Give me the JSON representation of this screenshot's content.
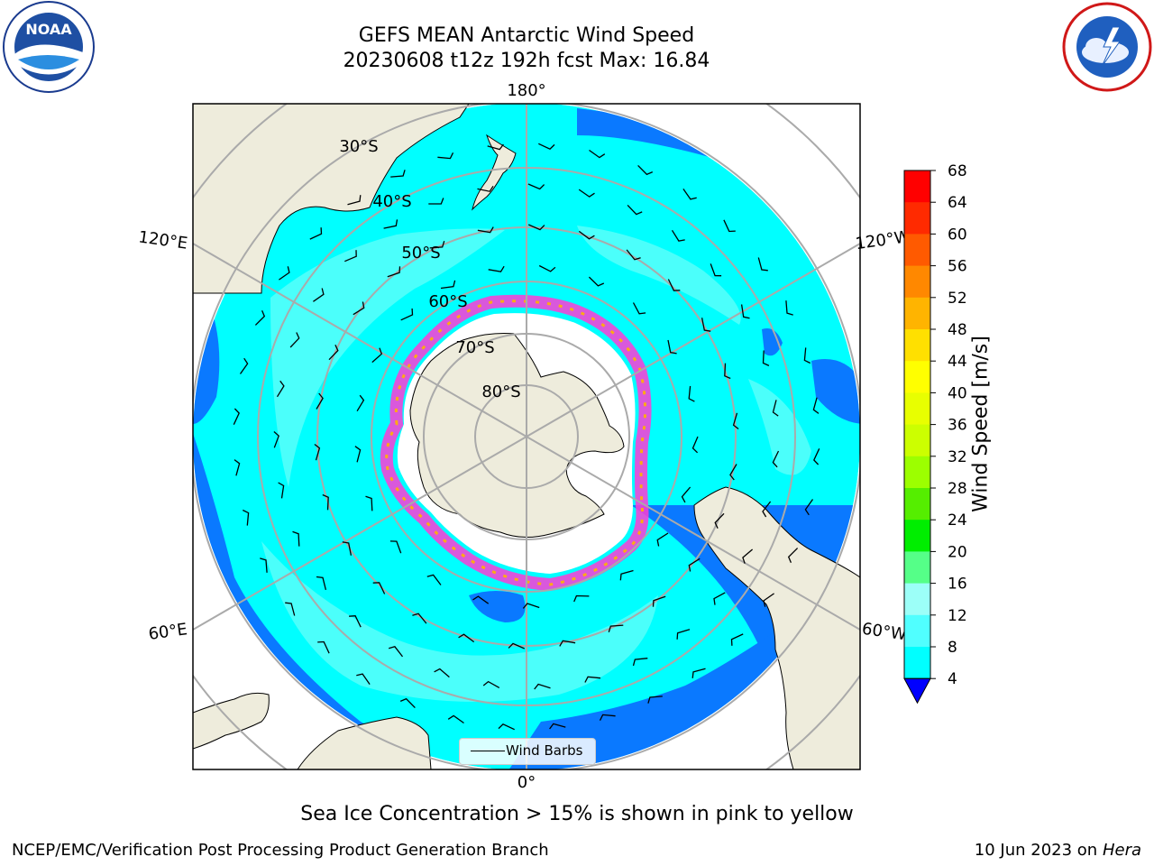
{
  "title": {
    "line1": "GEFS MEAN Antarctic Wind Speed",
    "line2": "20230608 t12z 192h fcst   Max: 16.84"
  },
  "map": {
    "projection": "south-polar-stereographic",
    "meridian_labels": [
      "180°",
      "120°E",
      "120°W",
      "60°E",
      "60°W",
      "0°"
    ],
    "parallel_labels": [
      "30°S",
      "40°S",
      "50°S",
      "60°S",
      "70°S",
      "80°S"
    ],
    "legend_label": "Wind Barbs",
    "colors": {
      "land": "#eeecdc",
      "ice_pink": "#ff3bd6",
      "ice_yellow": "#ffb400",
      "wind_4_8": "#0a79ff",
      "wind_8_12": "#00ffff",
      "wind_12_16": "#4bfffb"
    }
  },
  "colorbar": {
    "label": "Wind Speed [m/s]",
    "ticks": [
      "68",
      "64",
      "60",
      "56",
      "52",
      "48",
      "44",
      "40",
      "36",
      "32",
      "28",
      "24",
      "20",
      "16",
      "12",
      "8",
      "4"
    ],
    "colors": [
      "#ff0000",
      "#ff2a00",
      "#ff5a00",
      "#ff8800",
      "#ffb400",
      "#ffe000",
      "#ffff00",
      "#e8ff00",
      "#ccff00",
      "#9cff00",
      "#55ee00",
      "#00ee00",
      "#55ff88",
      "#9cfff8",
      "#50ffff",
      "#00ffff",
      "#0a79ff"
    ],
    "extend_below_color": "#0000ff"
  },
  "subtitle": "Sea Ice Concentration > 15% is shown in pink to yellow",
  "footer": {
    "left": "NCEP/EMC/Verification Post Processing Product Generation Branch",
    "right_date": "10 Jun 2023 on",
    "right_host": "Hera"
  },
  "logos": {
    "left": "noaa-logo",
    "right": "nws-logo",
    "left_text": "NOAA"
  }
}
